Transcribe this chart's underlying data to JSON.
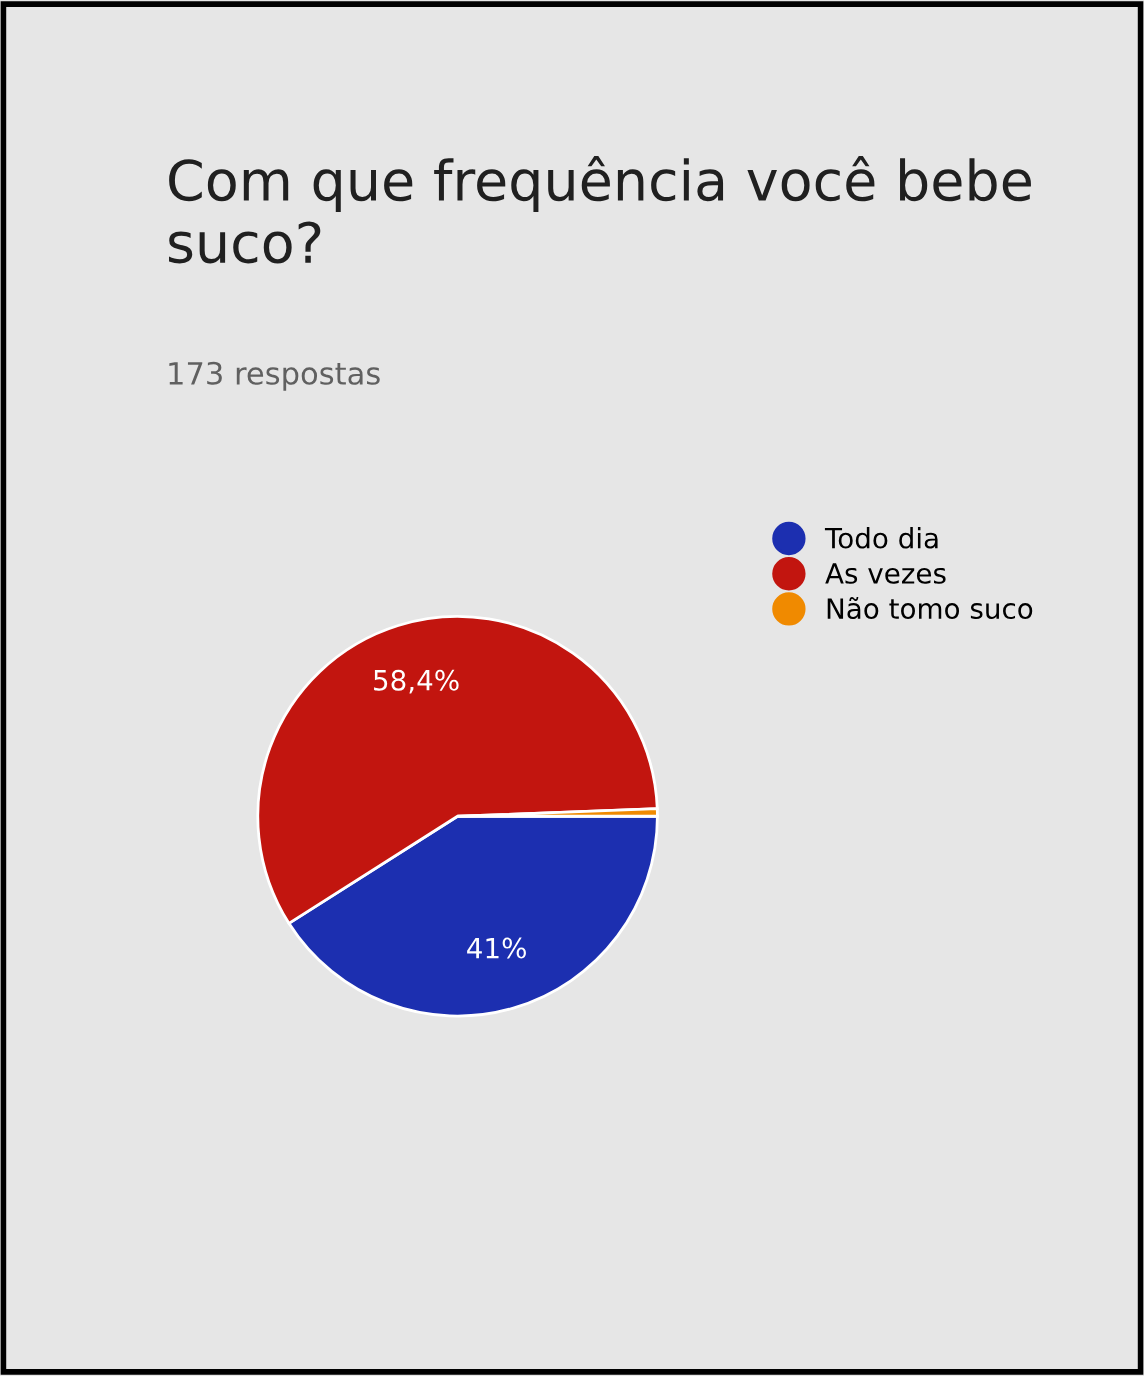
{
  "chart_data": {
    "type": "pie",
    "title": "Com que frequência você bebe suco?",
    "subtitle": "173 respostas",
    "categories": [
      "Todo dia",
      "As vezes",
      "Não tomo suco"
    ],
    "values": [
      41,
      58.4,
      0.6
    ],
    "colors": [
      "#1c2fb0",
      "#c2150f",
      "#f08a00"
    ],
    "value_labels": [
      "41%",
      "58,4%",
      null
    ],
    "legend": "right"
  }
}
